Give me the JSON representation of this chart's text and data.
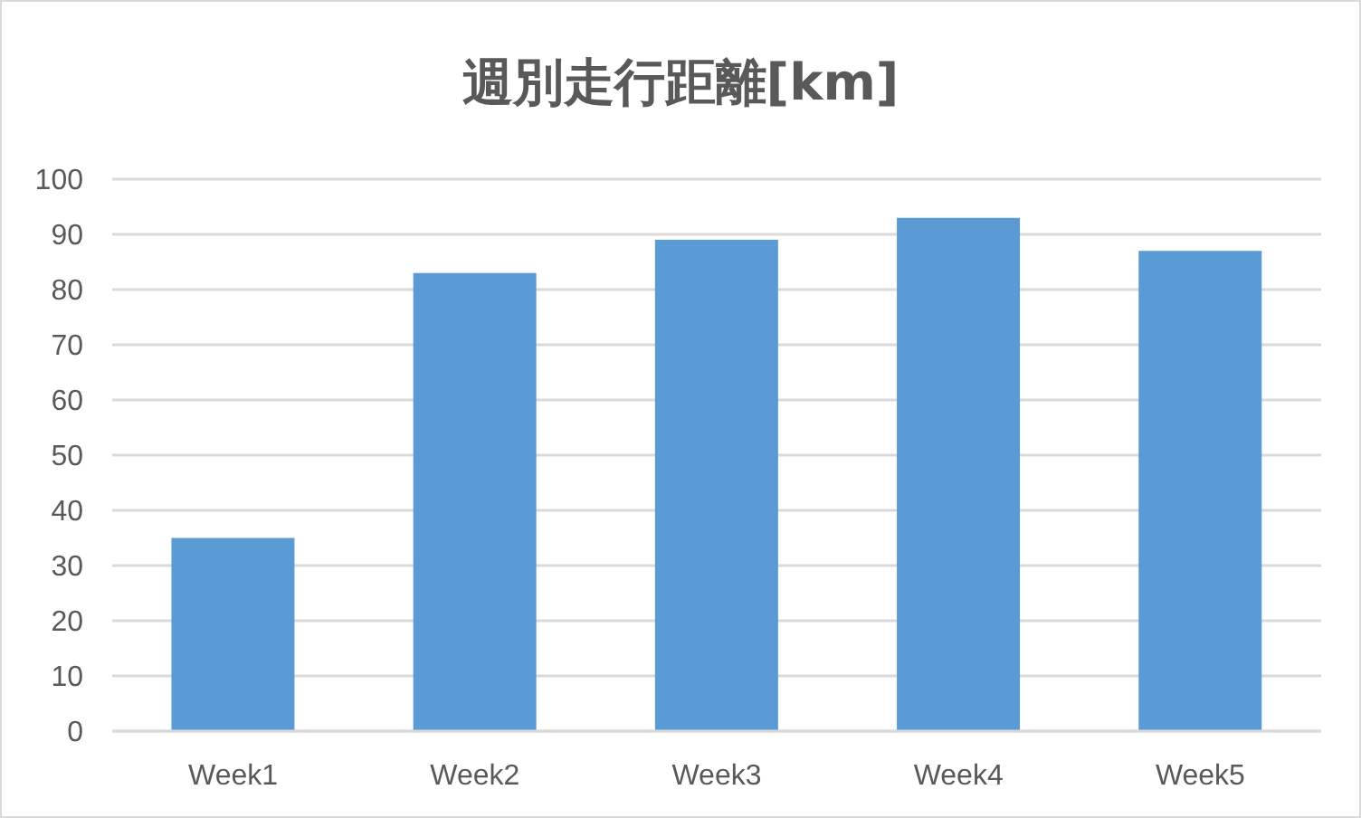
{
  "chart_data": {
    "type": "bar",
    "title": "週別走行距離[km]",
    "categories": [
      "Week1",
      "Week2",
      "Week3",
      "Week4",
      "Week5"
    ],
    "values": [
      35,
      83,
      89,
      93,
      87
    ],
    "color": "#5b9bd5",
    "ylim": [
      0,
      100
    ],
    "yticks": [
      0,
      10,
      20,
      30,
      40,
      50,
      60,
      70,
      80,
      90,
      100
    ],
    "grid": "y"
  }
}
